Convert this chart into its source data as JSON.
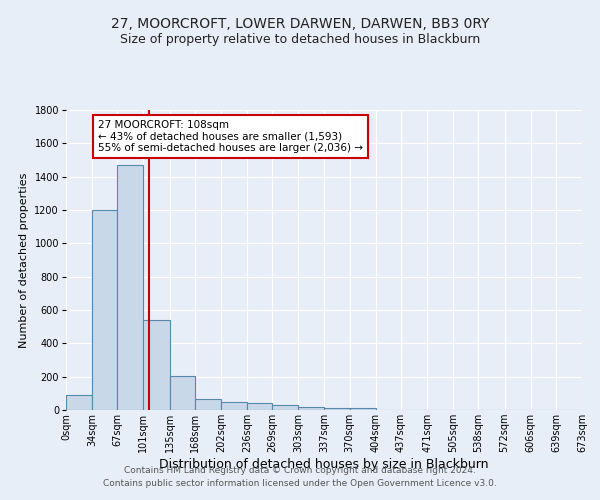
{
  "title": "27, MOORCROFT, LOWER DARWEN, DARWEN, BB3 0RY",
  "subtitle": "Size of property relative to detached houses in Blackburn",
  "xlabel": "Distribution of detached houses by size in Blackburn",
  "ylabel": "Number of detached properties",
  "footer_line1": "Contains HM Land Registry data © Crown copyright and database right 2024.",
  "footer_line2": "Contains public sector information licensed under the Open Government Licence v3.0.",
  "bin_edges": [
    0,
    34,
    67,
    101,
    135,
    168,
    202,
    236,
    269,
    303,
    337,
    370,
    404,
    437,
    471,
    505,
    538,
    572,
    606,
    639,
    673
  ],
  "bin_labels": [
    "0sqm",
    "34sqm",
    "67sqm",
    "101sqm",
    "135sqm",
    "168sqm",
    "202sqm",
    "236sqm",
    "269sqm",
    "303sqm",
    "337sqm",
    "370sqm",
    "404sqm",
    "437sqm",
    "471sqm",
    "505sqm",
    "538sqm",
    "572sqm",
    "606sqm",
    "639sqm",
    "673sqm"
  ],
  "bar_heights": [
    90,
    1200,
    1470,
    540,
    205,
    65,
    50,
    40,
    28,
    20,
    10,
    13,
    0,
    0,
    0,
    0,
    0,
    0,
    0,
    0
  ],
  "bar_color": "#c8d8e8",
  "bar_edge_color": "#5588aa",
  "vline_x": 108,
  "vline_color": "#cc0000",
  "annotation_text": "27 MOORCROFT: 108sqm\n← 43% of detached houses are smaller (1,593)\n55% of semi-detached houses are larger (2,036) →",
  "annotation_box_color": "white",
  "annotation_box_edge_color": "#cc0000",
  "ylim": [
    0,
    1800
  ],
  "yticks": [
    0,
    200,
    400,
    600,
    800,
    1000,
    1200,
    1400,
    1600,
    1800
  ],
  "bg_color": "#e8eef8",
  "plot_bg_color": "#e8eef8",
  "grid_color": "white",
  "title_fontsize": 10,
  "subtitle_fontsize": 9,
  "xlabel_fontsize": 9,
  "ylabel_fontsize": 8,
  "footer_fontsize": 6.5,
  "tick_fontsize": 7,
  "annotation_fontsize": 7.5
}
